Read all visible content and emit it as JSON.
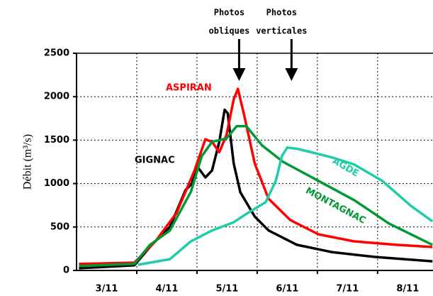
{
  "chart_data": {
    "type": "line",
    "ylabel": "Débit (m³/s)",
    "xlim": [
      2.5,
      8.42
    ],
    "ylim": [
      0,
      2500
    ],
    "yticks": [
      0,
      500,
      1000,
      1500,
      2000,
      2500
    ],
    "xticks": [
      {
        "value": 3,
        "label": "3/11"
      },
      {
        "value": 4,
        "label": "4/11"
      },
      {
        "value": 5,
        "label": "5/11"
      },
      {
        "value": 6,
        "label": "6/11"
      },
      {
        "value": 7,
        "label": "7/11"
      },
      {
        "value": 8,
        "label": "8/11"
      }
    ],
    "xgrid": [
      3.5,
      4.5,
      5.5,
      6.5,
      7.5
    ],
    "grid": true,
    "series": [
      {
        "name": "GIGNAC",
        "color": "#000000",
        "x": [
          2.54,
          3.46,
          3.75,
          4.05,
          4.31,
          4.42,
          4.49,
          4.64,
          4.75,
          4.87,
          4.96,
          5.01,
          5.11,
          5.22,
          5.46,
          5.69,
          6.16,
          6.75,
          7.46,
          8.41
        ],
        "values": [
          25,
          60,
          295,
          500,
          925,
          1000,
          1210,
          1070,
          1150,
          1480,
          1850,
          1810,
          1230,
          900,
          620,
          460,
          295,
          210,
          155,
          105
        ]
      },
      {
        "name": "ASPIRAN",
        "color": "#ff0000",
        "x": [
          2.54,
          3.46,
          3.81,
          4.16,
          4.46,
          4.64,
          4.75,
          4.87,
          4.99,
          5.11,
          5.18,
          5.28,
          5.46,
          5.69,
          6.05,
          6.52,
          7.11,
          7.81,
          8.41
        ],
        "values": [
          75,
          90,
          335,
          660,
          1150,
          1510,
          1480,
          1360,
          1560,
          1970,
          2090,
          1800,
          1230,
          825,
          580,
          415,
          335,
          295,
          270
        ]
      },
      {
        "name": "MONTAGNAC",
        "color": "#009933",
        "x": [
          2.54,
          3.46,
          3.72,
          4.05,
          4.4,
          4.58,
          4.75,
          4.99,
          5.16,
          5.32,
          5.58,
          5.93,
          6.52,
          7.11,
          7.69,
          8.41
        ],
        "values": [
          50,
          75,
          295,
          460,
          905,
          1315,
          1480,
          1520,
          1660,
          1660,
          1440,
          1250,
          1030,
          810,
          540,
          295
        ]
      },
      {
        "name": "AGDE",
        "color": "#1fcca8",
        "x": [
          3.52,
          4.05,
          4.4,
          4.75,
          5.11,
          5.34,
          5.64,
          5.81,
          5.91,
          6.0,
          6.16,
          6.4,
          6.75,
          7.11,
          7.58,
          8.05,
          8.41
        ],
        "values": [
          65,
          130,
          335,
          460,
          555,
          660,
          785,
          1030,
          1315,
          1415,
          1400,
          1360,
          1300,
          1220,
          1030,
          745,
          565
        ]
      }
    ],
    "annotations": [
      {
        "lines": [
          "Photos",
          "obliques"
        ],
        "x": 5.2
      },
      {
        "lines": [
          "Photos",
          "verticales"
        ],
        "x": 6.07
      }
    ]
  }
}
